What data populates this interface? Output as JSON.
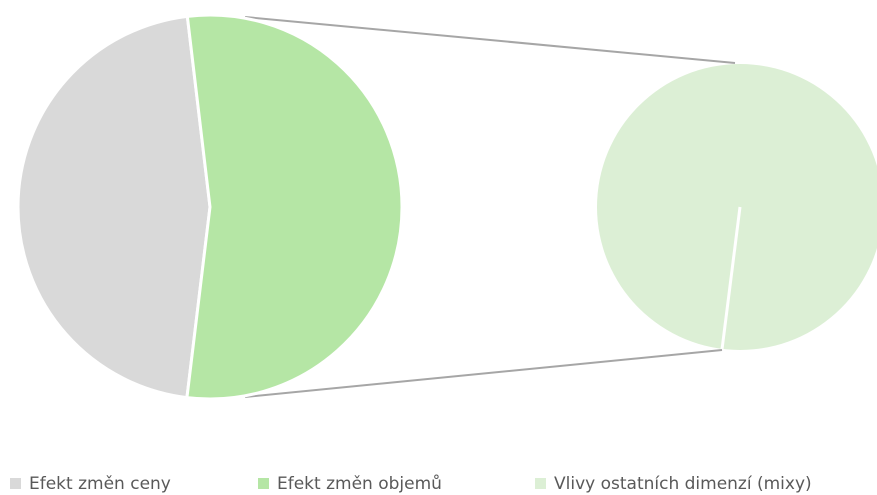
{
  "chart_data": {
    "type": "pie-of-pie",
    "categories": [
      "Efekt změn ceny",
      "Efekt změn objemů",
      "Vlivy ostatních dimenzí (mixy)"
    ],
    "values": [
      46.2,
      53.8,
      1
    ],
    "colors": [
      "#d9d9d9",
      "#b5e6a5",
      "#dcefd5"
    ],
    "main_pie_count": 2,
    "legend": "bottom"
  }
}
